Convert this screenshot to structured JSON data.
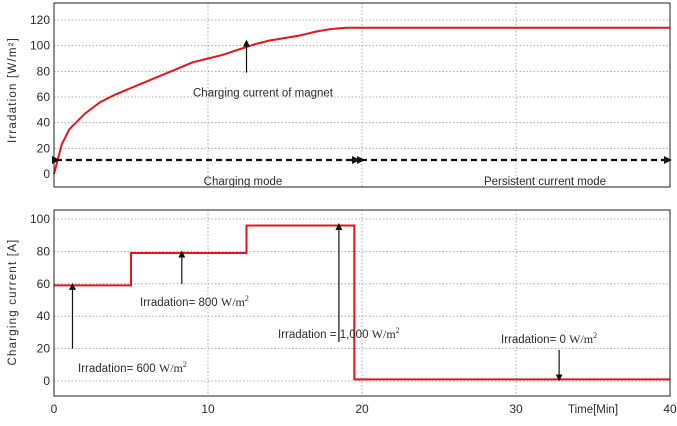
{
  "chart_data": [
    {
      "type": "line",
      "ylabel": "Irradation",
      "ylabel_unit": "[W/m²]",
      "ylim": [
        0,
        125
      ],
      "xlim": [
        0,
        40
      ],
      "grid": true,
      "yticks": [
        0,
        20,
        40,
        60,
        80,
        100,
        120
      ],
      "series": [
        {
          "name": "Charging current of magnet",
          "color": "#e8141b",
          "x": [
            0,
            0.5,
            1,
            2,
            3,
            4,
            5,
            6,
            7,
            8,
            9,
            10,
            11,
            12,
            13,
            14,
            15,
            16,
            17,
            18,
            19,
            19.5,
            20,
            25,
            30,
            35,
            40
          ],
          "y": [
            0,
            23,
            35,
            47,
            56,
            62,
            67,
            72,
            77,
            82,
            87,
            90,
            93,
            97,
            101,
            104,
            106,
            108,
            111,
            113,
            114,
            114,
            114,
            114,
            114,
            114,
            114
          ]
        }
      ],
      "annotations": [
        {
          "text": "Charging current of magnet",
          "arrow_to": [
            12.5,
            102
          ],
          "text_at": [
            15,
            62
          ]
        }
      ],
      "modes": [
        {
          "label": "Charging mode",
          "x_range": [
            0,
            20
          ]
        },
        {
          "label": "Persistent current mode",
          "x_range": [
            20,
            40
          ]
        }
      ]
    },
    {
      "type": "line",
      "ylabel": "Charging current",
      "ylabel_unit": "[A]",
      "xlabel": "Time[Min]",
      "ylim": [
        -5,
        105
      ],
      "xlim": [
        0,
        40
      ],
      "grid": true,
      "xticks": [
        0,
        10,
        20,
        30,
        40
      ],
      "yticks": [
        0,
        20,
        40,
        60,
        80,
        100
      ],
      "series": [
        {
          "name": "Charging current",
          "color": "#e8141b",
          "x": [
            0,
            5,
            5,
            12.5,
            12.5,
            19.5,
            19.5,
            40
          ],
          "y": [
            59,
            59,
            79,
            79,
            96,
            96,
            1,
            1
          ]
        }
      ],
      "annotations": [
        {
          "text": "Irradation= 600 ",
          "unit": "W/m",
          "sup": "2",
          "arrow_to": [
            1.2,
            59
          ],
          "arrow_from": [
            1.2,
            20
          ]
        },
        {
          "text": "Irradation= 800 ",
          "unit": "W/m",
          "sup": "2",
          "arrow_to": [
            8.3,
            79
          ],
          "arrow_from": [
            8.3,
            60
          ]
        },
        {
          "text": "Irradation = 1,000 ",
          "unit": "W/m",
          "sup": "2",
          "arrow_to": [
            18.5,
            96
          ],
          "arrow_from": [
            18.5,
            24
          ]
        },
        {
          "text": "Irradation= 0 ",
          "unit": "W/m",
          "sup": "2",
          "arrow_to": [
            32.8,
            2
          ],
          "arrow_from": [
            32.8,
            20
          ]
        }
      ]
    }
  ]
}
